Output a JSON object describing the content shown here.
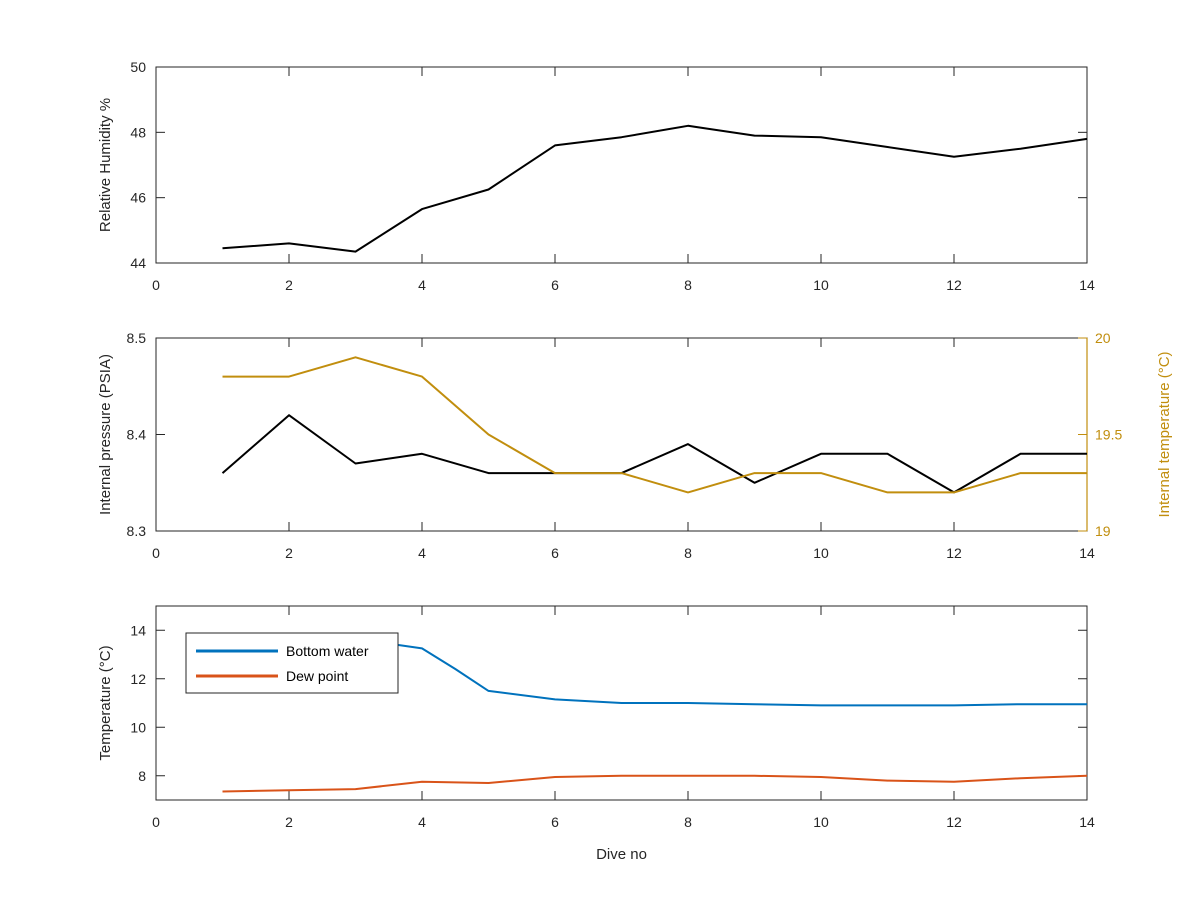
{
  "colors": {
    "black_line": "#000000",
    "right_axis": "#C18E0E",
    "bottom_water": "#0072BD",
    "dew_point": "#D95319",
    "axis": "#262626"
  },
  "chart_data": [
    {
      "type": "line",
      "xlabel": "",
      "ylabel": "Relative Humidity %",
      "xlim": [
        0,
        14
      ],
      "ylim": [
        44,
        50
      ],
      "xticks": [
        "0",
        "2",
        "4",
        "6",
        "8",
        "10",
        "12",
        "14"
      ],
      "yticks": [
        "44",
        "46",
        "48",
        "50"
      ],
      "grid": false,
      "series": [
        {
          "x": [
            1,
            2,
            3,
            4,
            5,
            6,
            7,
            8,
            9,
            10,
            11,
            12,
            13,
            14
          ],
          "y": [
            44.45,
            44.6,
            44.35,
            45.65,
            46.25,
            47.6,
            47.85,
            48.2,
            47.9,
            47.85,
            47.55,
            47.25,
            47.5,
            47.8
          ],
          "color": "#000000"
        }
      ]
    },
    {
      "type": "line",
      "xlabel": "",
      "ylabel": "Internal pressure (PSIA)",
      "ylabel_right": "Internal temperature (°C)",
      "xlim": [
        0,
        14
      ],
      "ylim": [
        8.3,
        8.5
      ],
      "ylim_right": [
        19,
        20
      ],
      "xticks": [
        "0",
        "2",
        "4",
        "6",
        "8",
        "10",
        "12",
        "14"
      ],
      "yticks": [
        "8.3",
        "8.4",
        "8.5"
      ],
      "yticks_right": [
        "19",
        "19.5",
        "20"
      ],
      "grid": false,
      "series": [
        {
          "axis": "left",
          "x": [
            1,
            2,
            3,
            4,
            5,
            6,
            7,
            8,
            9,
            10,
            11,
            12,
            13,
            14
          ],
          "y": [
            8.36,
            8.42,
            8.37,
            8.38,
            8.36,
            8.36,
            8.36,
            8.39,
            8.35,
            8.38,
            8.38,
            8.34,
            8.38,
            8.38
          ],
          "color": "#000000"
        },
        {
          "axis": "right",
          "x": [
            1,
            2,
            3,
            4,
            5,
            6,
            7,
            8,
            9,
            10,
            11,
            12,
            13,
            14
          ],
          "y": [
            19.8,
            19.8,
            19.9,
            19.8,
            19.5,
            19.3,
            19.3,
            19.2,
            19.3,
            19.3,
            19.2,
            19.2,
            19.3,
            19.3
          ],
          "color": "#C18E0E"
        }
      ]
    },
    {
      "type": "line",
      "xlabel": "Dive no",
      "ylabel": "Temperature (°C)",
      "xlim": [
        0,
        14
      ],
      "ylim": [
        7,
        15
      ],
      "xticks": [
        "0",
        "2",
        "4",
        "6",
        "8",
        "10",
        "12",
        "14"
      ],
      "yticks": [
        "8",
        "10",
        "12",
        "14"
      ],
      "grid": false,
      "legend_position": "top-left",
      "series": [
        {
          "name": "Bottom water",
          "x": [
            1,
            2,
            3,
            3.5,
            4,
            4.5,
            5,
            6,
            7,
            8,
            9,
            10,
            11,
            12,
            13,
            14
          ],
          "y": [
            13.8,
            13.7,
            13.55,
            13.45,
            13.25,
            12.4,
            11.5,
            11.15,
            11.0,
            11.0,
            10.95,
            10.9,
            10.9,
            10.9,
            10.95,
            10.95
          ],
          "color": "#0072BD"
        },
        {
          "name": "Dew point",
          "x": [
            1,
            2,
            3,
            4,
            5,
            6,
            7,
            8,
            9,
            10,
            11,
            12,
            13,
            14
          ],
          "y": [
            7.35,
            7.4,
            7.45,
            7.75,
            7.7,
            7.95,
            8.0,
            8.0,
            8.0,
            7.95,
            7.8,
            7.75,
            7.9,
            8.0
          ],
          "color": "#D95319"
        }
      ]
    }
  ]
}
